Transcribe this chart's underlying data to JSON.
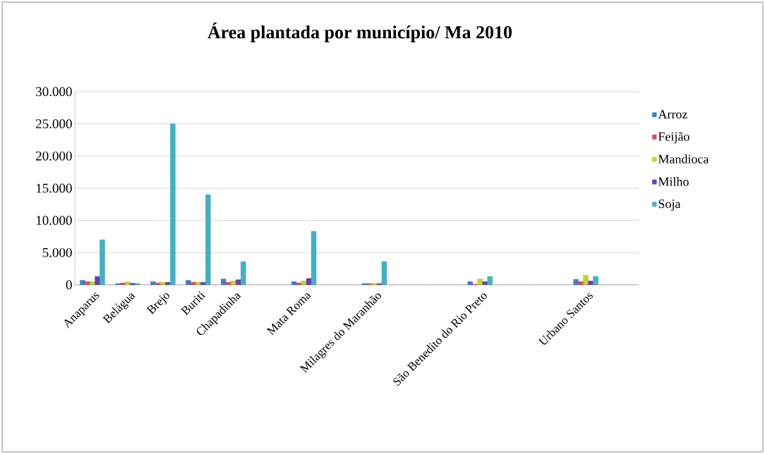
{
  "chart_data": {
    "type": "bar",
    "title": "Área plantada por município/ Ma 2010",
    "categories": [
      "Anaparus",
      "Belágua",
      "Brejo",
      "Buriti",
      "Chapadinha",
      null,
      "Mata Roma",
      null,
      "Milagres do Maranhão",
      null,
      null,
      "São Benedito do Rio Preto",
      null,
      null,
      "Urbano Santos",
      null
    ],
    "series": [
      {
        "name": "Arroz",
        "color": "#3f7fc6",
        "values": [
          700,
          200,
          500,
          700,
          900,
          null,
          500,
          null,
          200,
          null,
          null,
          500,
          null,
          null,
          850,
          null
        ]
      },
      {
        "name": "Feijão",
        "color": "#e04a5c",
        "values": [
          500,
          300,
          300,
          400,
          400,
          null,
          300,
          null,
          200,
          null,
          null,
          100,
          null,
          null,
          500,
          null
        ]
      },
      {
        "name": "Mandioca",
        "color": "#c6d230",
        "values": [
          500,
          450,
          400,
          400,
          600,
          null,
          600,
          null,
          200,
          null,
          null,
          900,
          null,
          null,
          1500,
          null
        ]
      },
      {
        "name": "Milho",
        "color": "#6a40b0",
        "values": [
          1300,
          250,
          400,
          400,
          800,
          null,
          1000,
          null,
          200,
          null,
          null,
          500,
          null,
          null,
          600,
          null
        ]
      },
      {
        "name": "Soja",
        "color": "#3fb2c8",
        "values": [
          7000,
          200,
          25000,
          14000,
          3600,
          null,
          8300,
          null,
          3600,
          null,
          null,
          1300,
          null,
          null,
          1300,
          null
        ]
      }
    ],
    "ylim": [
      0,
      30000
    ],
    "yticks": [
      0,
      {
        "value": 5000,
        "label": "5.000"
      },
      {
        "value": 10000,
        "label": "10.000"
      },
      {
        "value": 15000,
        "label": "15.000"
      },
      {
        "value": 20000,
        "label": "20.000"
      },
      {
        "value": 25000,
        "label": "25.000"
      },
      {
        "value": 30000,
        "label": "30.000"
      }
    ],
    "grid": "y",
    "legend": "right"
  }
}
